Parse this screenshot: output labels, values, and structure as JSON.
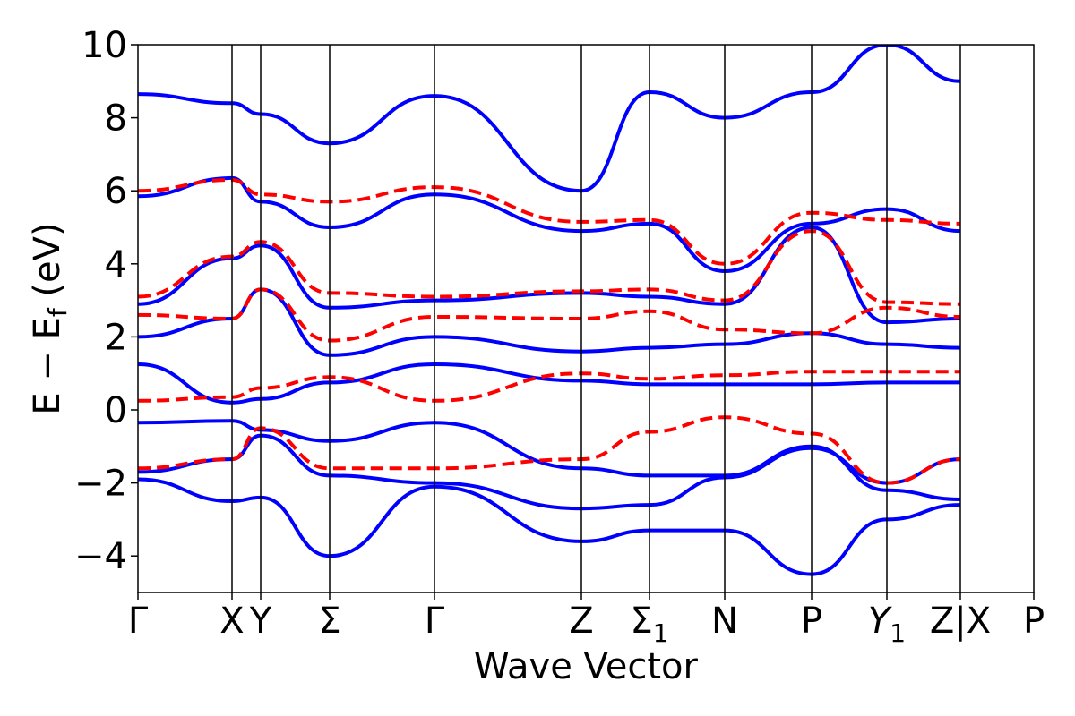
{
  "chart_data": {
    "type": "line",
    "xlabel": "Wave Vector",
    "ylabel": "E − E",
    "ylabel_subscript": "f",
    "ylabel_suffix": " (eV)",
    "ylim": [
      -5,
      10
    ],
    "yticks": [
      -4,
      -2,
      0,
      2,
      4,
      6,
      8,
      10
    ],
    "ytick_labels": [
      "−4",
      "−2",
      "0",
      "2",
      "4",
      "6",
      "8",
      "10"
    ],
    "grid": false,
    "legend": "none",
    "colors": {
      "solid": "#0000ff",
      "dashed": "#ff0000",
      "axes": "#000000"
    },
    "kpoints": [
      {
        "pos": 0.0,
        "label": "Γ"
      },
      {
        "pos": 0.105,
        "label": "X"
      },
      {
        "pos": 0.137,
        "label": "Y"
      },
      {
        "pos": 0.214,
        "label": "Σ"
      },
      {
        "pos": 0.331,
        "label": "Γ"
      },
      {
        "pos": 0.495,
        "label": "Z"
      },
      {
        "pos": 0.571,
        "label": "Σ",
        "sub": "1"
      },
      {
        "pos": 0.655,
        "label": "N"
      },
      {
        "pos": 0.752,
        "label": "P"
      },
      {
        "pos": 0.836,
        "label": "Y",
        "sub": "1",
        "italic": true
      },
      {
        "pos": 0.918,
        "label": "Z|X"
      },
      {
        "pos": 1.0,
        "label": "P"
      }
    ],
    "series": [
      {
        "style": "solid",
        "bands": [
          {
            "x": [
              0,
              0.105,
              0.137,
              0.214,
              0.331,
              0.495,
              0.571,
              0.655,
              0.752,
              0.836,
              0.918
            ],
            "y": [
              -0.35,
              -0.3,
              -0.55,
              -0.85,
              -0.35,
              -1.6,
              -1.8,
              -1.8,
              -1.0,
              -2.2,
              -2.45
            ]
          },
          {
            "x": [
              0,
              0.105,
              0.137,
              0.214,
              0.331,
              0.495,
              0.571,
              0.655,
              0.752,
              0.836,
              0.918
            ],
            "y": [
              1.25,
              0.2,
              0.3,
              0.75,
              1.25,
              0.8,
              0.7,
              0.7,
              0.7,
              0.75,
              0.75
            ]
          },
          {
            "x": [
              0,
              0.105,
              0.137,
              0.214,
              0.331,
              0.495,
              0.571,
              0.655,
              0.752,
              0.836,
              0.918
            ],
            "y": [
              2.0,
              2.5,
              3.3,
              1.5,
              2.0,
              1.6,
              1.7,
              1.8,
              2.1,
              1.8,
              1.7
            ]
          },
          {
            "x": [
              0,
              0.105,
              0.137,
              0.214,
              0.331,
              0.495,
              0.571,
              0.655,
              0.752,
              0.836,
              0.918
            ],
            "y": [
              2.9,
              4.15,
              4.5,
              2.8,
              3.0,
              3.2,
              3.1,
              2.9,
              5.0,
              2.4,
              2.5
            ]
          },
          {
            "x": [
              0,
              0.105,
              0.137,
              0.214,
              0.331,
              0.495,
              0.571,
              0.655,
              0.752,
              0.836,
              0.918
            ],
            "y": [
              5.85,
              6.35,
              5.7,
              5.0,
              5.9,
              4.9,
              5.1,
              3.8,
              5.1,
              5.5,
              4.9
            ]
          },
          {
            "x": [
              0,
              0.105,
              0.137,
              0.214,
              0.331,
              0.495,
              0.571,
              0.655,
              0.752,
              0.836,
              0.918
            ],
            "y": [
              -1.7,
              -1.35,
              -0.7,
              -1.8,
              -2.0,
              -2.7,
              -2.6,
              -1.85,
              -1.05,
              -2.0,
              -1.35
            ]
          },
          {
            "x": [
              0,
              0.105,
              0.137,
              0.214,
              0.331,
              0.495,
              0.571,
              0.655,
              0.752,
              0.836,
              0.918
            ],
            "y": [
              -1.9,
              -2.5,
              -2.4,
              -4.0,
              -2.1,
              -3.6,
              -3.3,
              -3.3,
              -4.5,
              -3.0,
              -2.6
            ]
          },
          {
            "x": [
              0,
              0.105,
              0.137,
              0.214,
              0.331,
              0.495,
              0.571,
              0.655,
              0.752,
              0.836,
              0.918
            ],
            "y": [
              8.65,
              8.4,
              8.1,
              7.3,
              8.6,
              6.0,
              8.7,
              8.0,
              8.7,
              10.0,
              9.0
            ]
          }
        ]
      },
      {
        "style": "dashed",
        "bands": [
          {
            "x": [
              0,
              0.105,
              0.137,
              0.214,
              0.331,
              0.495,
              0.571,
              0.655,
              0.752,
              0.836,
              0.918
            ],
            "y": [
              0.25,
              0.35,
              0.6,
              0.9,
              0.25,
              1.0,
              0.85,
              0.95,
              1.05,
              1.05,
              1.05
            ]
          },
          {
            "x": [
              0,
              0.105,
              0.137,
              0.214,
              0.331,
              0.495,
              0.571,
              0.655,
              0.752,
              0.836,
              0.918
            ],
            "y": [
              -1.6,
              -1.35,
              -0.5,
              -1.6,
              -1.6,
              -1.35,
              -0.6,
              -0.2,
              -0.65,
              -2.0,
              -1.35
            ]
          },
          {
            "x": [
              0,
              0.105,
              0.137,
              0.214,
              0.331,
              0.495,
              0.571,
              0.655,
              0.752,
              0.836,
              0.918
            ],
            "y": [
              2.6,
              2.5,
              3.3,
              1.9,
              2.55,
              2.5,
              2.7,
              2.2,
              2.1,
              2.8,
              2.55
            ]
          },
          {
            "x": [
              0,
              0.105,
              0.137,
              0.214,
              0.331,
              0.495,
              0.571,
              0.655,
              0.752,
              0.836,
              0.918
            ],
            "y": [
              3.1,
              4.2,
              4.6,
              3.2,
              3.1,
              3.25,
              3.3,
              3.0,
              4.9,
              2.95,
              2.9
            ]
          },
          {
            "x": [
              0,
              0.105,
              0.137,
              0.214,
              0.331,
              0.495,
              0.571,
              0.655,
              0.752,
              0.836,
              0.918
            ],
            "y": [
              6.0,
              6.3,
              5.9,
              5.7,
              6.1,
              5.15,
              5.2,
              4.0,
              5.4,
              5.2,
              5.1
            ]
          }
        ]
      }
    ]
  }
}
